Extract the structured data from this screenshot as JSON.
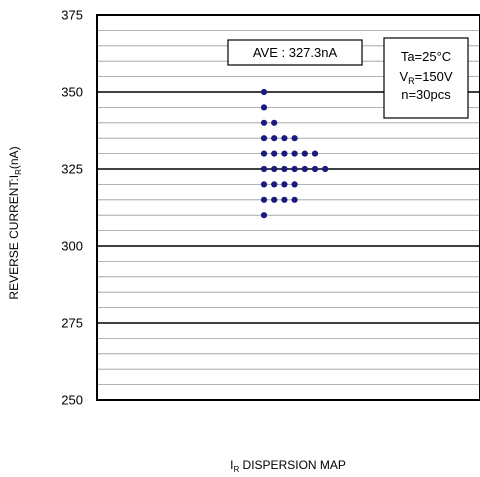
{
  "chart_data": {
    "type": "scatter",
    "title": "",
    "xlabel": "I_R DISPERSION MAP",
    "xlabel_main": "I",
    "xlabel_sub": "R",
    "xlabel_rest": " DISPERSION MAP",
    "ylabel_main": "REVERSE CURRENT:I",
    "ylabel_sub": "R",
    "ylabel_rest": "(nA)",
    "ylim": [
      250,
      375
    ],
    "yticks": [
      "375",
      "350",
      "325",
      "300",
      "275",
      "250"
    ],
    "ytick_values": [
      375,
      350,
      325,
      300,
      275,
      250
    ],
    "major_step": 25,
    "minor_step": 5,
    "grid": true,
    "marker_color": "#1a1a80",
    "points_by_level": [
      {
        "value": 350,
        "count": 1
      },
      {
        "value": 345,
        "count": 1
      },
      {
        "value": 340,
        "count": 2
      },
      {
        "value": 335,
        "count": 4
      },
      {
        "value": 330,
        "count": 6
      },
      {
        "value": 325,
        "count": 7
      },
      {
        "value": 320,
        "count": 4
      },
      {
        "value": 315,
        "count": 4
      },
      {
        "value": 310,
        "count": 1
      }
    ],
    "average_box": "AVE : 327.3nA",
    "conditions": {
      "ta": "Ta=25°C",
      "vr_main": "V",
      "vr_sub": "R",
      "vr_rest": "=150V",
      "n": "n=30pcs"
    }
  }
}
